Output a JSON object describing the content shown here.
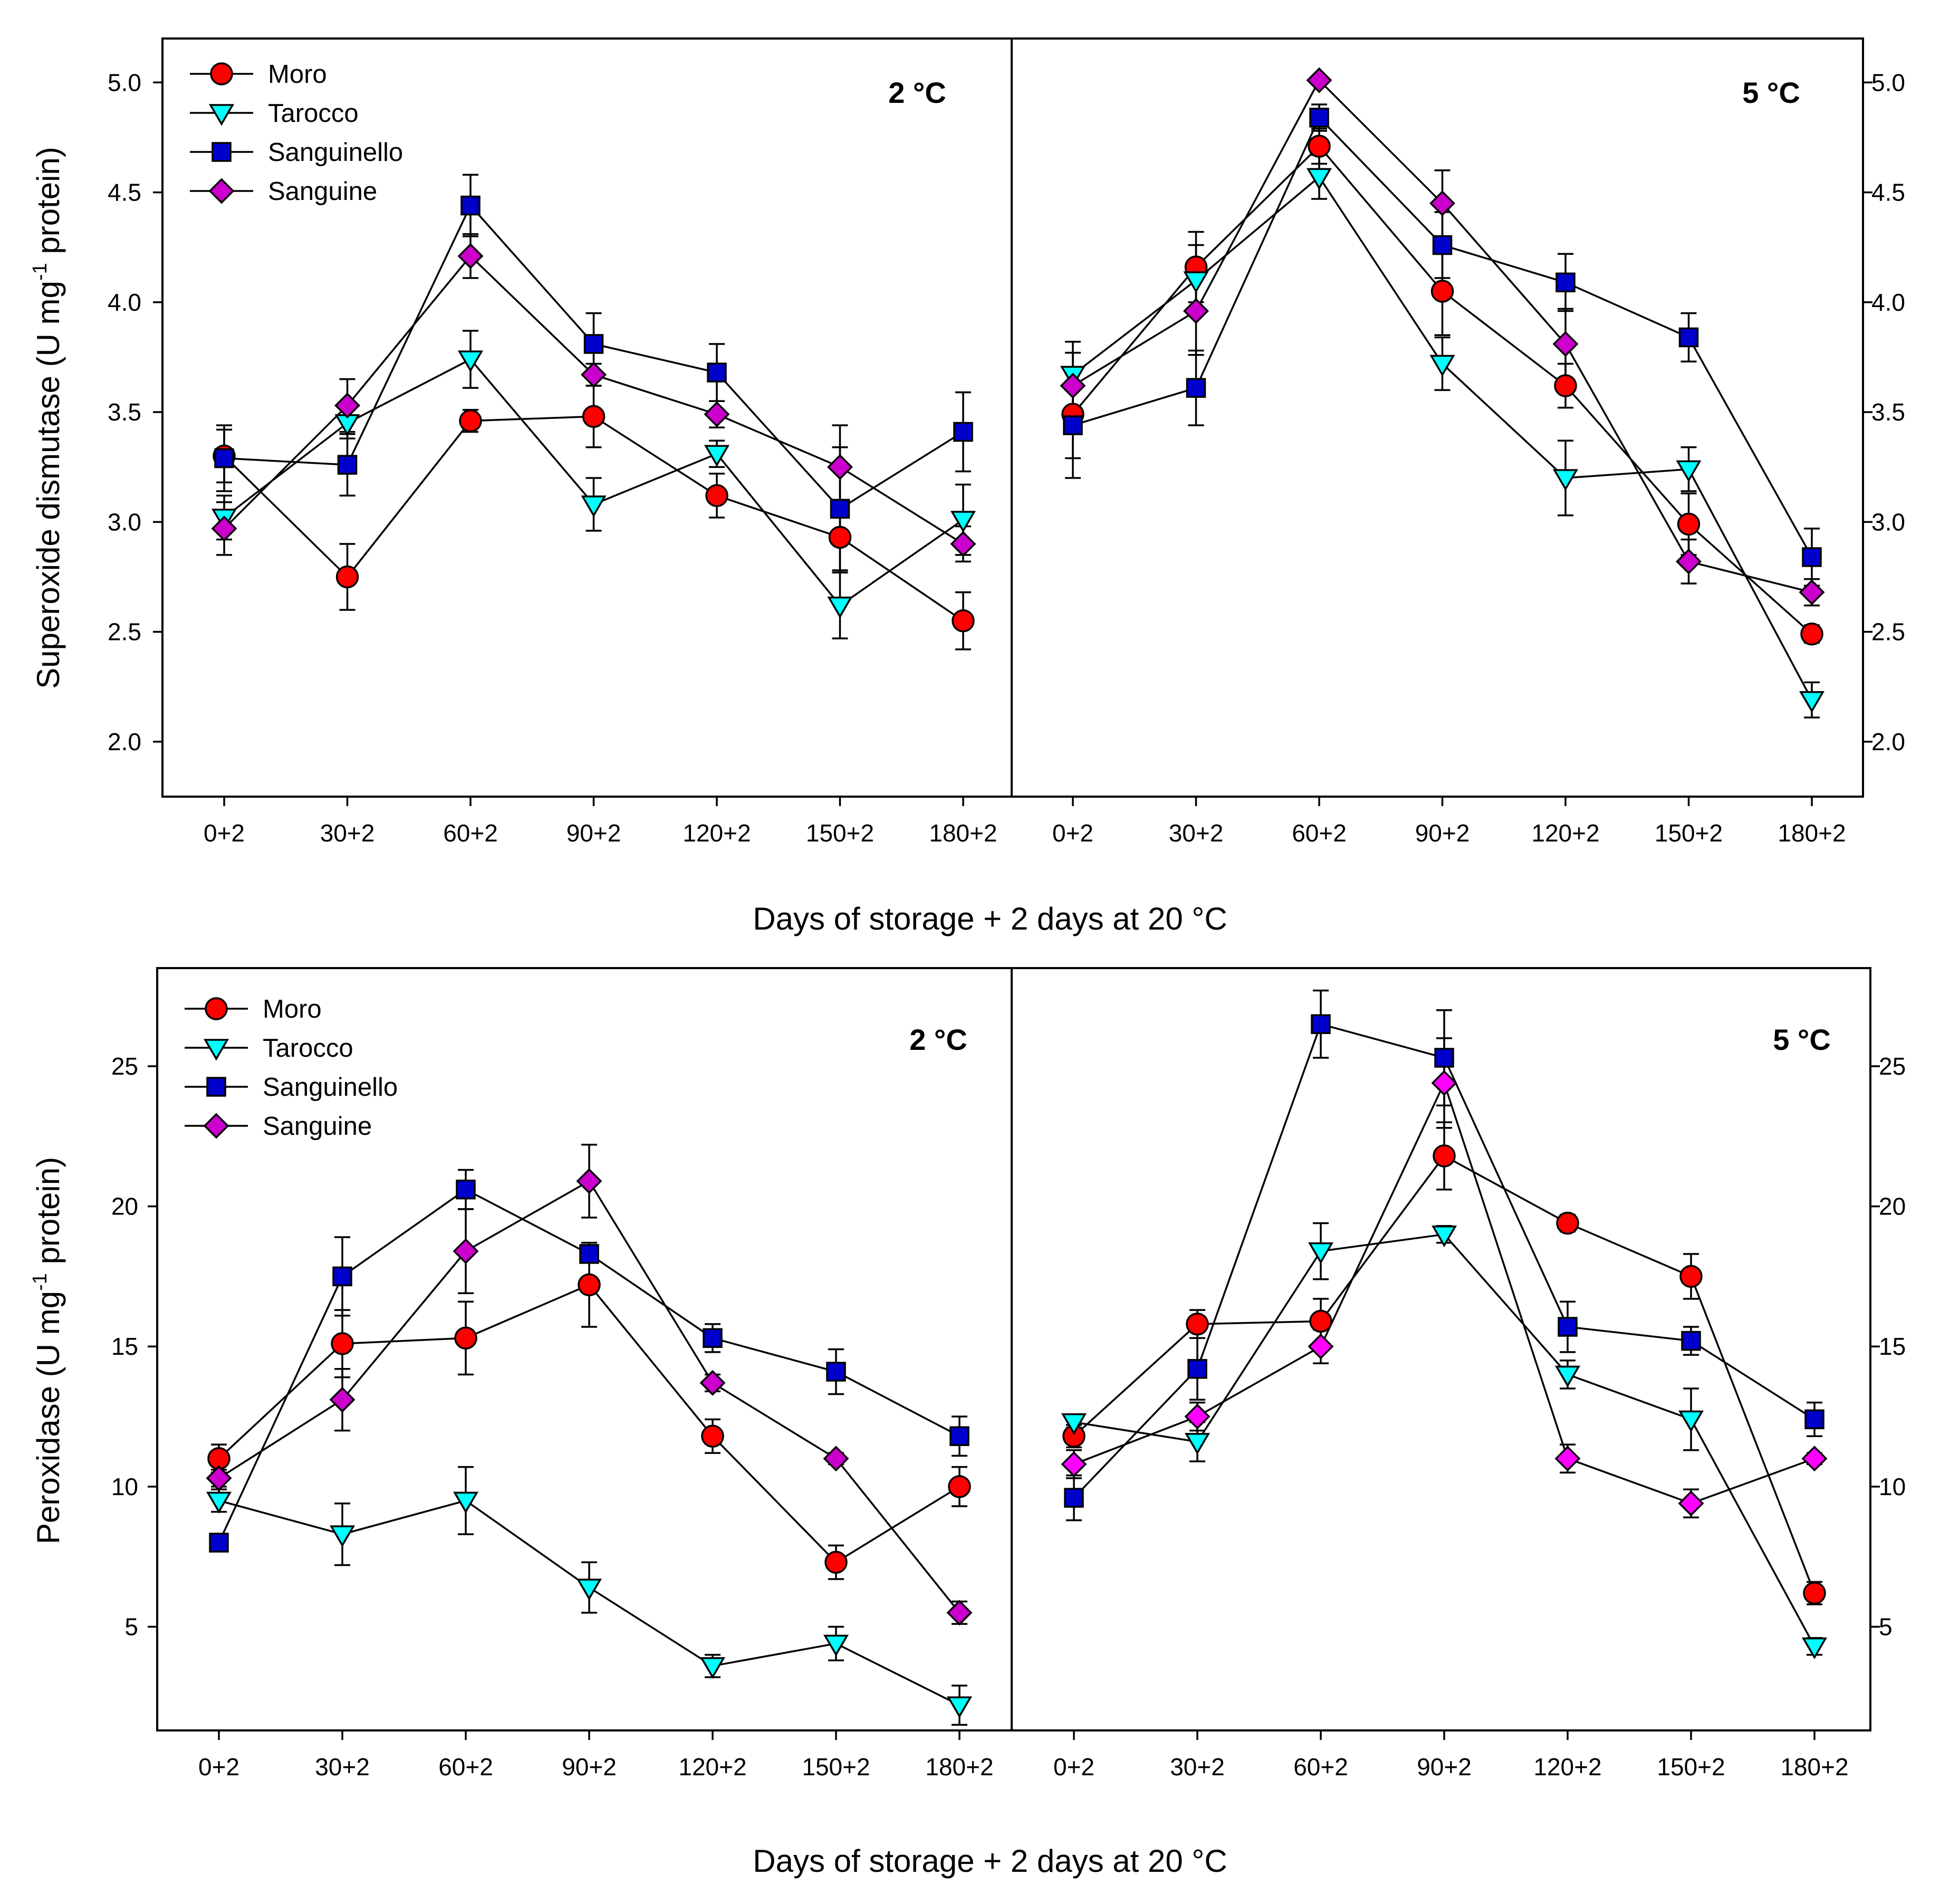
{
  "chart_data": [
    {
      "type": "line",
      "panel": "top-left",
      "title": "2 °C",
      "ylabel": "Superoxide dismutase (U mg-1 protein)",
      "xlabel": "Days of storage + 2 days at 20 °C",
      "categories": [
        "0+2",
        "30+2",
        "60+2",
        "90+2",
        "120+2",
        "150+2",
        "180+2"
      ],
      "ylim": [
        1.75,
        5.2
      ],
      "yticks": [
        "2.0",
        "2.5",
        "3.0",
        "3.5",
        "4.0",
        "4.5",
        "5.0"
      ],
      "legend": "top-left",
      "series": [
        {
          "name": "Moro",
          "values": [
            3.3,
            2.75,
            3.46,
            3.48,
            3.12,
            2.93,
            2.55
          ],
          "errors": [
            0.12,
            0.15,
            0.05,
            0.14,
            0.1,
            0.16,
            0.13
          ]
        },
        {
          "name": "Tarocco",
          "values": [
            3.02,
            3.45,
            3.74,
            3.08,
            3.31,
            2.62,
            3.01
          ],
          "errors": [
            0.1,
            0.07,
            0.13,
            0.12,
            0.06,
            0.15,
            0.16
          ]
        },
        {
          "name": "Sanguinello",
          "values": [
            3.29,
            3.26,
            4.44,
            3.81,
            3.68,
            3.06,
            3.41
          ],
          "errors": [
            0.15,
            0.14,
            0.14,
            0.14,
            0.13,
            0.28,
            0.18
          ]
        },
        {
          "name": "Sanguine",
          "values": [
            2.97,
            3.53,
            4.21,
            3.67,
            3.49,
            3.25,
            2.9
          ],
          "errors": [
            0.12,
            0.12,
            0.1,
            0.05,
            0.06,
            0.19,
            0.08
          ]
        }
      ]
    },
    {
      "type": "line",
      "panel": "top-right",
      "title": "5 °C",
      "ylabel": "Superoxide dismutase (U mg-1 protein)",
      "xlabel": "Days of storage + 2 days at 20 °C",
      "categories": [
        "0+2",
        "30+2",
        "60+2",
        "90+2",
        "120+2",
        "150+2",
        "180+2"
      ],
      "ylim": [
        1.75,
        5.2
      ],
      "yticks": [
        "2.0",
        "2.5",
        "3.0",
        "3.5",
        "4.0",
        "4.5",
        "5.0"
      ],
      "series": [
        {
          "name": "Moro",
          "values": [
            3.49,
            4.16,
            4.71,
            4.05,
            3.62,
            2.99,
            2.49
          ],
          "errors": [
            0.2,
            0.16,
            0.08,
            0.2,
            0.1,
            0.14,
            0.04
          ]
        },
        {
          "name": "Tarocco",
          "values": [
            3.67,
            4.1,
            4.57,
            3.72,
            3.2,
            3.24,
            2.19
          ],
          "errors": [
            0.15,
            0.16,
            0.1,
            0.12,
            0.17,
            0.1,
            0.08
          ]
        },
        {
          "name": "Sanguinello",
          "values": [
            3.44,
            3.61,
            4.84,
            4.26,
            4.09,
            3.84,
            2.84
          ],
          "errors": [
            0.24,
            0.17,
            0.06,
            0.15,
            0.13,
            0.11,
            0.13
          ]
        },
        {
          "name": "Sanguine",
          "values": [
            3.62,
            3.96,
            5.01,
            4.45,
            3.81,
            2.82,
            2.68
          ],
          "errors": [
            0.15,
            0.2,
            0.02,
            0.15,
            0.16,
            0.1,
            0.06
          ]
        }
      ]
    },
    {
      "type": "line",
      "panel": "bottom-left",
      "title": "2 °C",
      "ylabel": "Peroxidase (U mg-1 protein)",
      "xlabel": "Days of storage + 2 days at 20 °C",
      "categories": [
        "0+2",
        "30+2",
        "60+2",
        "90+2",
        "120+2",
        "150+2",
        "180+2"
      ],
      "ylim": [
        1.3,
        28.5
      ],
      "yticks": [
        "5",
        "10",
        "15",
        "20",
        "25"
      ],
      "legend": "top-left",
      "series": [
        {
          "name": "Moro",
          "values": [
            11.0,
            15.1,
            15.3,
            17.2,
            11.8,
            7.3,
            10.0
          ],
          "errors": [
            0.5,
            1.2,
            1.3,
            1.5,
            0.6,
            0.6,
            0.7
          ]
        },
        {
          "name": "Tarocco",
          "values": [
            9.5,
            8.3,
            9.5,
            6.4,
            3.6,
            4.4,
            2.2
          ],
          "errors": [
            0.4,
            1.1,
            1.2,
            0.9,
            0.4,
            0.6,
            0.7
          ]
        },
        {
          "name": "Sanguinello",
          "values": [
            8.0,
            17.5,
            20.6,
            18.3,
            15.3,
            14.1,
            11.8
          ],
          "errors": [
            0.3,
            1.4,
            0.7,
            0.3,
            0.5,
            0.8,
            0.7
          ]
        },
        {
          "name": "Sanguine",
          "values": [
            10.3,
            13.1,
            18.4,
            20.9,
            13.7,
            11.0,
            5.5
          ],
          "errors": [
            0.3,
            1.1,
            1.5,
            1.3,
            0.3,
            0.2,
            0.4
          ]
        }
      ]
    },
    {
      "type": "line",
      "panel": "bottom-right",
      "title": "5 °C",
      "ylabel": "Peroxidase (U mg-1 protein)",
      "xlabel": "Days of storage + 2 days at 20 °C",
      "categories": [
        "0+2",
        "30+2",
        "60+2",
        "90+2",
        "120+2",
        "150+2",
        "180+2"
      ],
      "ylim": [
        1.3,
        28.5
      ],
      "yticks": [
        "5",
        "10",
        "15",
        "20",
        "25"
      ],
      "series": [
        {
          "name": "Moro",
          "values": [
            11.8,
            15.8,
            15.9,
            21.8,
            19.4,
            17.5,
            6.2
          ],
          "errors": [
            0.4,
            0.5,
            0.8,
            1.2,
            0.3,
            0.8,
            0.4
          ]
        },
        {
          "name": "Tarocco",
          "values": [
            12.3,
            11.6,
            18.4,
            19.0,
            14.0,
            12.4,
            4.3
          ],
          "errors": [
            0.2,
            0.7,
            1.0,
            0.3,
            0.5,
            1.1,
            0.3
          ]
        },
        {
          "name": "Sanguinello",
          "values": [
            9.6,
            14.2,
            26.5,
            25.3,
            15.7,
            15.2,
            12.4
          ],
          "errors": [
            0.8,
            1.1,
            1.2,
            1.7,
            0.9,
            0.5,
            0.6
          ]
        },
        {
          "name": "Sanguine",
          "values": [
            10.8,
            12.5,
            15.0,
            24.4,
            11.0,
            9.4,
            11.0
          ],
          "errors": [
            0.5,
            0.5,
            0.6,
            1.6,
            0.5,
            0.5,
            0.2
          ]
        }
      ]
    }
  ],
  "series_styles": {
    "Moro": {
      "marker": "circle",
      "color": "#ff0000"
    },
    "Tarocco": {
      "marker": "triangle-down",
      "color": "#00ffff"
    },
    "Sanguinello": {
      "marker": "square",
      "color": "#0000cc"
    },
    "Sanguine": {
      "marker": "diamond",
      "color": "#cc00cc"
    }
  },
  "series_styles_override": {
    "bottom-right": {
      "Sanguine": "#ff00ff"
    }
  },
  "labels": {
    "top_ylabel_main": "Superoxide dismutase (U mg",
    "top_ylabel_sup": "-1",
    "top_ylabel_end": " protein)",
    "bottom_ylabel_main": "Peroxidase (U mg",
    "bottom_ylabel_sup": "-1",
    "bottom_ylabel_end": " protein)",
    "xaxis_title": "Days of storage + 2 days at 20 °C",
    "temp_left": "2 °C",
    "temp_right": "5 °C"
  }
}
